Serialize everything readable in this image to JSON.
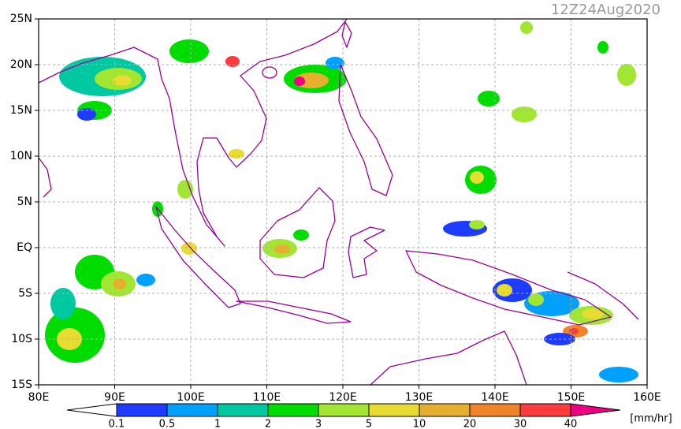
{
  "map": {
    "title": "12Z24Aug2020",
    "xlim": [
      80,
      160
    ],
    "ylim": [
      -15,
      25
    ],
    "xticks": [
      {
        "value": 80,
        "label": "80E"
      },
      {
        "value": 90,
        "label": "90E"
      },
      {
        "value": 100,
        "label": "100E"
      },
      {
        "value": 110,
        "label": "110E"
      },
      {
        "value": 120,
        "label": "120E"
      },
      {
        "value": 130,
        "label": "130E"
      },
      {
        "value": 140,
        "label": "140E"
      },
      {
        "value": 150,
        "label": "150E"
      },
      {
        "value": 160,
        "label": "160E"
      }
    ],
    "yticks": [
      {
        "value": 25,
        "label": "25N"
      },
      {
        "value": 20,
        "label": "20N"
      },
      {
        "value": 15,
        "label": "15N"
      },
      {
        "value": 10,
        "label": "10N"
      },
      {
        "value": 5,
        "label": "5N"
      },
      {
        "value": 0,
        "label": "EQ"
      },
      {
        "value": -5,
        "label": "5S"
      },
      {
        "value": -10,
        "label": "10S"
      },
      {
        "value": -15,
        "label": "15S"
      }
    ],
    "grid": true,
    "colorbar": {
      "levels": [
        0.1,
        0.5,
        1,
        2,
        3,
        5,
        10,
        20,
        30,
        40
      ],
      "colors": [
        "#ffffff",
        "#1e3cff",
        "#00a0ff",
        "#00c8a0",
        "#00dc00",
        "#a0e632",
        "#e6dc32",
        "#e6af2d",
        "#f08228",
        "#fa3c3c",
        "#f00082"
      ],
      "unit": "[mm/hr]"
    }
  }
}
